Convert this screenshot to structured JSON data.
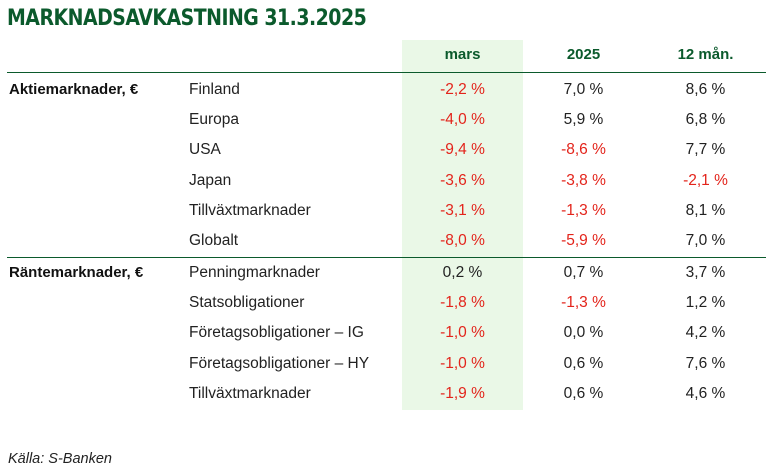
{
  "title": "MARKNADSAVKASTNING 31.3.2025",
  "columns": [
    "mars",
    "2025",
    "12 mån."
  ],
  "groups": [
    {
      "label": "Aktiemarknader, €",
      "rows": [
        {
          "name": "Finland",
          "values": [
            "-2,2 %",
            "7,0 %",
            "8,6 %"
          ]
        },
        {
          "name": "Europa",
          "values": [
            "-4,0 %",
            "5,9 %",
            "6,8 %"
          ]
        },
        {
          "name": "USA",
          "values": [
            "-9,4 %",
            "-8,6 %",
            "7,7 %"
          ]
        },
        {
          "name": "Japan",
          "values": [
            "-3,6 %",
            "-3,8 %",
            "-2,1 %"
          ]
        },
        {
          "name": "Tillväxtmarknader",
          "values": [
            "-3,1 %",
            "-1,3 %",
            "8,1 %"
          ]
        },
        {
          "name": "Globalt",
          "values": [
            "-8,0 %",
            "-5,9 %",
            "7,0 %"
          ]
        }
      ]
    },
    {
      "label": "Räntemarknader, €",
      "rows": [
        {
          "name": "Penningmarknader",
          "values": [
            "0,2 %",
            "0,7 %",
            "3,7 %"
          ]
        },
        {
          "name": "Statsobligationer",
          "values": [
            "-1,8 %",
            "-1,3 %",
            "1,2 %"
          ]
        },
        {
          "name": "Företagsobligationer – IG",
          "values": [
            "-1,0 %",
            "0,0 %",
            "4,2 %"
          ]
        },
        {
          "name": "Företagsobligationer – HY",
          "values": [
            "-1,0 %",
            "0,6 %",
            "7,6 %"
          ]
        },
        {
          "name": "Tillväxtmarknader",
          "values": [
            "-1,9 %",
            "0,6 %",
            "4,6 %"
          ]
        }
      ]
    }
  ],
  "source": "Källa: S-Banken",
  "colors": {
    "brand_green": "#0b5a2c",
    "highlight_bg": "#eaf8e7",
    "negative": "#e3241b",
    "positive": "#222222"
  }
}
